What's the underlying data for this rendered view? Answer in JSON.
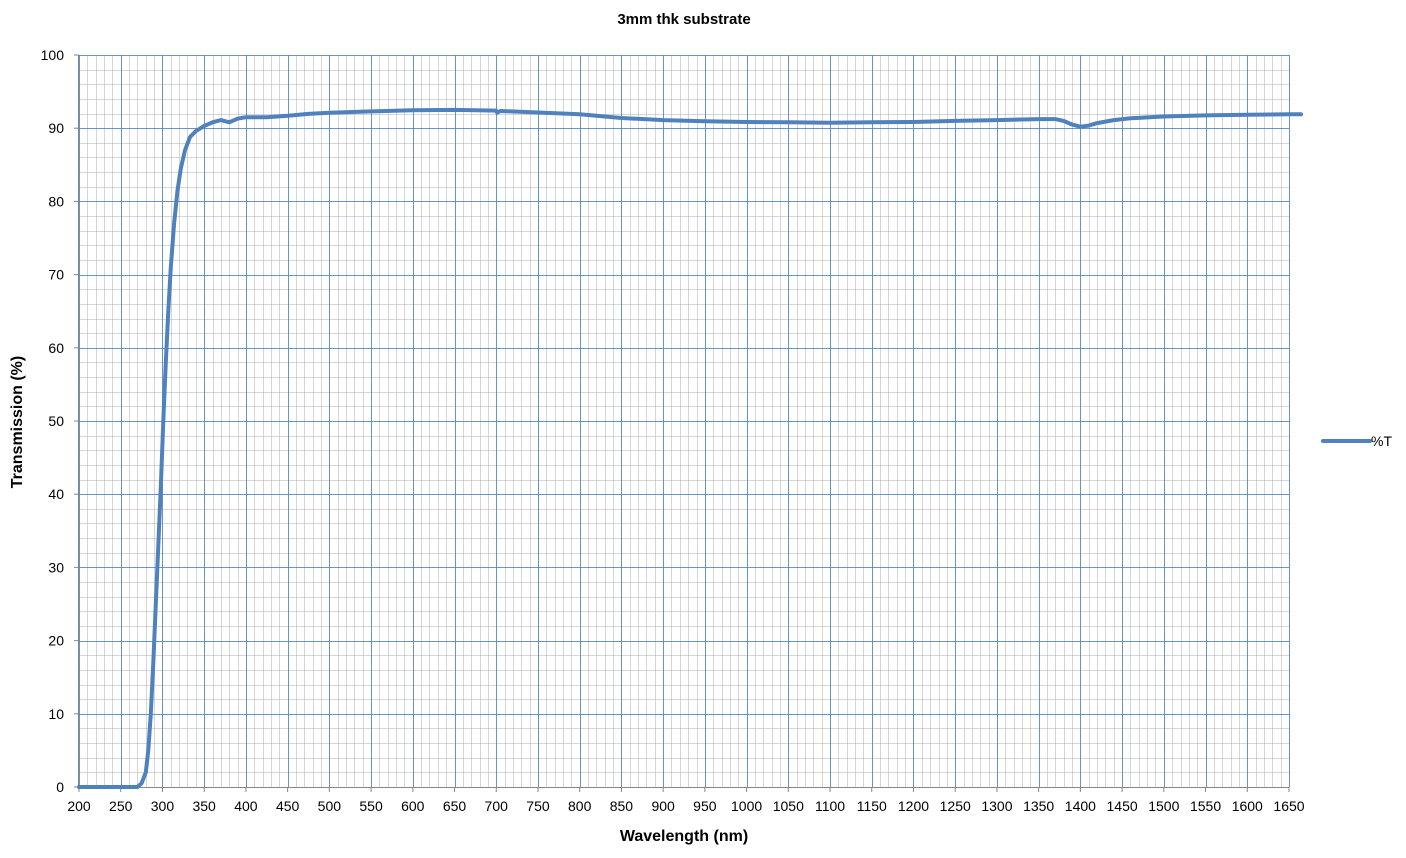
{
  "chart_data": {
    "type": "line",
    "title": "3mm thk substrate",
    "xlabel": "Wavelength (nm)",
    "ylabel": "Transmission (%)",
    "xlim": [
      200,
      1650
    ],
    "ylim": [
      0,
      100
    ],
    "x_major_step": 50,
    "x_minor_step": 10,
    "y_major_step": 10,
    "y_minor_step": 2,
    "grid": true,
    "legend_position": "right",
    "colors": {
      "series": "#4F81BD",
      "major_grid": "#4F81BD",
      "minor_grid": "#B0B0B0",
      "axis": "#868686"
    },
    "series": [
      {
        "name": "%T",
        "points": [
          [
            200,
            0
          ],
          [
            250,
            0
          ],
          [
            270,
            0
          ],
          [
            275,
            0.5
          ],
          [
            280,
            2
          ],
          [
            283,
            5
          ],
          [
            286,
            10
          ],
          [
            289,
            17
          ],
          [
            292,
            25
          ],
          [
            295,
            33
          ],
          [
            298,
            41
          ],
          [
            301,
            50
          ],
          [
            304,
            58
          ],
          [
            307,
            65
          ],
          [
            310,
            71
          ],
          [
            314,
            77
          ],
          [
            318,
            81.5
          ],
          [
            322,
            84.5
          ],
          [
            327,
            87
          ],
          [
            333,
            88.8
          ],
          [
            340,
            89.6
          ],
          [
            350,
            90.3
          ],
          [
            360,
            90.8
          ],
          [
            370,
            91.1
          ],
          [
            380,
            90.8
          ],
          [
            390,
            91.3
          ],
          [
            400,
            91.5
          ],
          [
            425,
            91.5
          ],
          [
            450,
            91.7
          ],
          [
            475,
            91.95
          ],
          [
            500,
            92.1
          ],
          [
            550,
            92.3
          ],
          [
            600,
            92.45
          ],
          [
            650,
            92.5
          ],
          [
            700,
            92.4
          ],
          [
            701,
            92.1
          ],
          [
            705,
            92.35
          ],
          [
            750,
            92.15
          ],
          [
            800,
            91.9
          ],
          [
            850,
            91.4
          ],
          [
            900,
            91.1
          ],
          [
            950,
            90.95
          ],
          [
            1000,
            90.85
          ],
          [
            1050,
            90.8
          ],
          [
            1100,
            90.75
          ],
          [
            1150,
            90.8
          ],
          [
            1200,
            90.85
          ],
          [
            1250,
            91.0
          ],
          [
            1300,
            91.1
          ],
          [
            1350,
            91.25
          ],
          [
            1370,
            91.25
          ],
          [
            1380,
            91.0
          ],
          [
            1390,
            90.5
          ],
          [
            1400,
            90.2
          ],
          [
            1410,
            90.35
          ],
          [
            1420,
            90.7
          ],
          [
            1440,
            91.1
          ],
          [
            1460,
            91.35
          ],
          [
            1500,
            91.6
          ],
          [
            1550,
            91.75
          ],
          [
            1600,
            91.85
          ],
          [
            1650,
            91.9
          ]
        ]
      }
    ]
  }
}
